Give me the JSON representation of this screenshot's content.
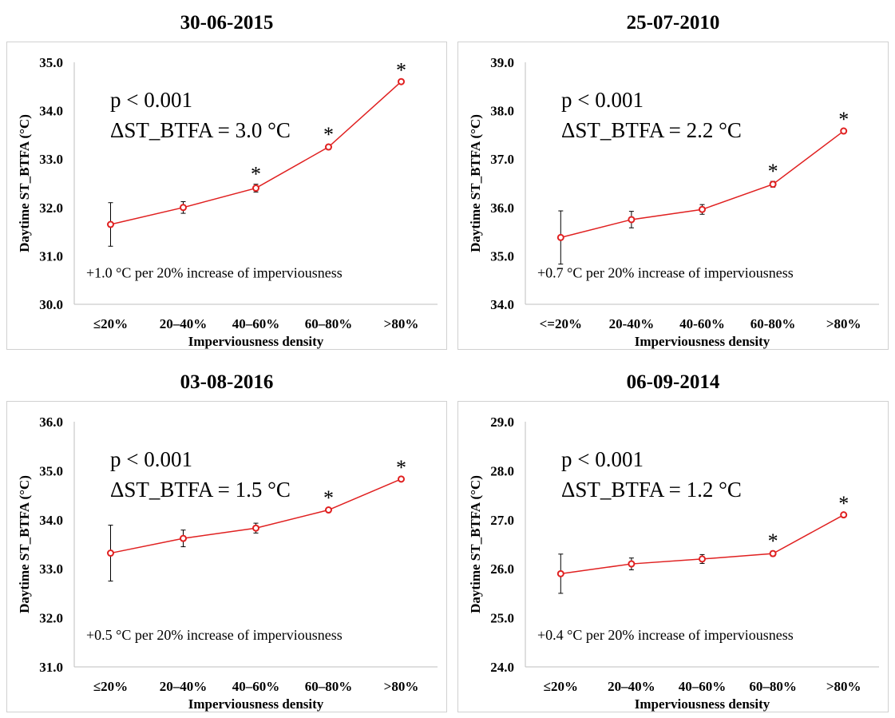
{
  "chart_data": [
    {
      "type": "line",
      "title": "30-06-2015",
      "xlabel": "Imperviousness density",
      "ylabel": "Daytime ST_BTFA (°C)",
      "categories": [
        "≤20%",
        "20–40%",
        "40–60%",
        "60–80%",
        ">80%"
      ],
      "series": [
        {
          "values": [
            31.65,
            32.0,
            32.4,
            33.25,
            34.6
          ],
          "error": [
            0.45,
            0.12,
            0.08,
            0.05,
            0.03
          ]
        }
      ],
      "ylim": [
        30.0,
        35.0
      ],
      "yticks": [
        "30.0",
        "31.0",
        "32.0",
        "33.0",
        "34.0",
        "35.0"
      ],
      "significant": [
        false,
        false,
        true,
        true,
        true
      ],
      "annotation_p": "p < 0.001",
      "annotation_delta": "ΔST_BTFA = 3.0 °C",
      "annotation_rate": "+1.0 °C per 20% increase of imperviousness",
      "marker": "*",
      "color": "#e02020"
    },
    {
      "type": "line",
      "title": "25-07-2010",
      "xlabel": "Imperviousness density",
      "ylabel": "Daytime ST_BTFA (°C)",
      "categories": [
        "<=20%",
        "20-40%",
        "40-60%",
        "60-80%",
        ">80%"
      ],
      "series": [
        {
          "values": [
            35.38,
            35.75,
            35.96,
            36.48,
            37.58
          ],
          "error": [
            0.55,
            0.17,
            0.1,
            0.06,
            0.03
          ]
        }
      ],
      "ylim": [
        34.0,
        39.0
      ],
      "yticks": [
        "34.0",
        "35.0",
        "36.0",
        "37.0",
        "38.0",
        "39.0"
      ],
      "significant": [
        false,
        false,
        false,
        true,
        true
      ],
      "annotation_p": "p < 0.001",
      "annotation_delta": "ΔST_BTFA = 2.2 °C",
      "annotation_rate": "+0.7 °C per 20% increase of imperviousness",
      "marker": "*",
      "color": "#e02020"
    },
    {
      "type": "line",
      "title": "03-08-2016",
      "xlabel": "Imperviousness density",
      "ylabel": "Daytime ST_BTFA (°C)",
      "categories": [
        "≤20%",
        "20–40%",
        "40–60%",
        "60–80%",
        ">80%"
      ],
      "series": [
        {
          "values": [
            33.32,
            33.62,
            33.83,
            34.2,
            34.83
          ],
          "error": [
            0.57,
            0.17,
            0.1,
            0.04,
            0.03
          ]
        }
      ],
      "ylim": [
        31.0,
        36.0
      ],
      "yticks": [
        "31.0",
        "32.0",
        "33.0",
        "34.0",
        "35.0",
        "36.0"
      ],
      "significant": [
        false,
        false,
        false,
        true,
        true
      ],
      "annotation_p": "p < 0.001",
      "annotation_delta": "ΔST_BTFA = 1.5 °C",
      "annotation_rate": "+0.5 °C per 20% increase of imperviousness",
      "marker": "*",
      "color": "#e02020"
    },
    {
      "type": "line",
      "title": "06-09-2014",
      "xlabel": "Imperviousness density",
      "ylabel": "Daytime ST_BTFA (°C)",
      "categories": [
        "≤20%",
        "20–40%",
        "40–60%",
        "60–80%",
        ">80%"
      ],
      "series": [
        {
          "values": [
            25.9,
            26.1,
            26.2,
            26.31,
            27.1
          ],
          "error": [
            0.4,
            0.12,
            0.09,
            0.05,
            0.03
          ]
        }
      ],
      "ylim": [
        24.0,
        29.0
      ],
      "yticks": [
        "24.0",
        "25.0",
        "26.0",
        "27.0",
        "28.0",
        "29.0"
      ],
      "significant": [
        false,
        false,
        false,
        true,
        true
      ],
      "annotation_p": "p < 0.001",
      "annotation_delta": "ΔST_BTFA = 1.2 °C",
      "annotation_rate": "+0.4 °C per 20% increase of imperviousness",
      "marker": "*",
      "color": "#e02020"
    }
  ]
}
